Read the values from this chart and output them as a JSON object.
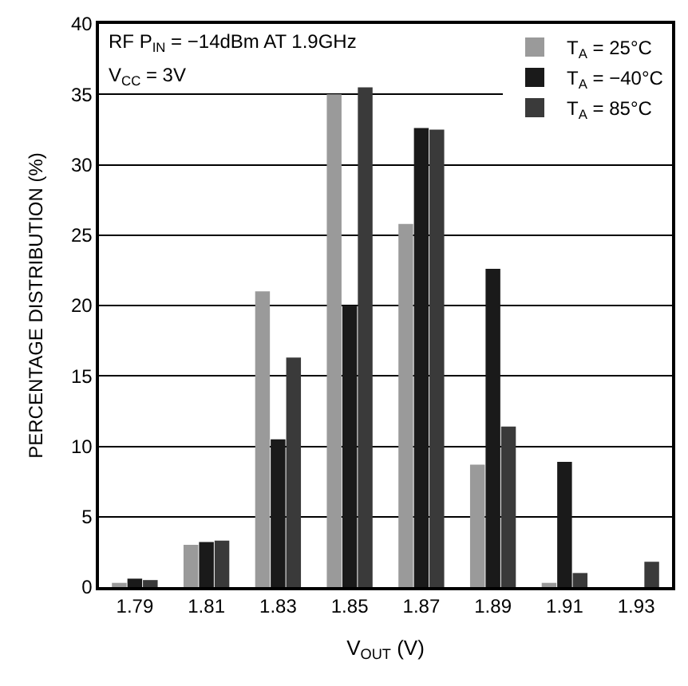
{
  "chart_data": {
    "type": "bar",
    "xlabel": "V$_{OUT}$ (V)",
    "ylabel": "PERCENTAGE DISTRIBUTION (%)",
    "annotations": [
      "RF P$_{IN}$ = −14dBm AT 1.9GHz",
      "V$_{CC}$ = 3V"
    ],
    "categories": [
      "1.79",
      "1.81",
      "1.83",
      "1.85",
      "1.87",
      "1.89",
      "1.91",
      "1.93"
    ],
    "series": [
      {
        "name": "T$_{A}$ = 25°C",
        "color": "#9a9a9a",
        "values": [
          0.3,
          3,
          21,
          35,
          25.8,
          8.7,
          0.3,
          0
        ]
      },
      {
        "name": "T$_{A}$ = −40°C",
        "color": "#1a1a1a",
        "values": [
          0.6,
          3.2,
          10.5,
          20,
          32.6,
          22.6,
          8.9,
          0
        ]
      },
      {
        "name": "T$_{A}$ = 85°C",
        "color": "#3a3a3a",
        "values": [
          0.5,
          3.3,
          16.3,
          35.5,
          32.5,
          11.4,
          1,
          1.8
        ]
      }
    ],
    "ylim": [
      0,
      40
    ],
    "yticks": [
      0,
      5,
      10,
      15,
      20,
      25,
      30,
      35,
      40
    ],
    "grid": "y",
    "legend": "top right"
  }
}
